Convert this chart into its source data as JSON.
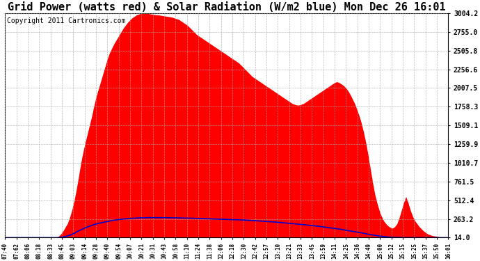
{
  "title": "Grid Power (watts red) & Solar Radiation (W/m2 blue) Mon Dec 26 16:01",
  "copyright": "Copyright 2011 Cartronics.com",
  "yticks": [
    14.0,
    263.2,
    512.4,
    761.5,
    1010.7,
    1259.9,
    1509.1,
    1758.3,
    2007.5,
    2256.6,
    2505.8,
    2755.0,
    3004.2
  ],
  "ymin": 14.0,
  "ymax": 3004.2,
  "xtick_labels": [
    "07:40",
    "07:62",
    "08:06",
    "08:18",
    "08:33",
    "08:45",
    "09:03",
    "09:14",
    "09:28",
    "09:40",
    "09:54",
    "10:07",
    "10:21",
    "10:31",
    "10:43",
    "10:58",
    "11:10",
    "11:24",
    "11:38",
    "12:06",
    "12:18",
    "12:30",
    "12:42",
    "12:57",
    "13:10",
    "13:21",
    "13:33",
    "13:45",
    "13:59",
    "14:11",
    "14:25",
    "14:36",
    "14:49",
    "15:00",
    "15:12",
    "15:15",
    "15:25",
    "15:37",
    "15:50",
    "16:01"
  ],
  "background_color": "#ffffff",
  "grid_color": "#aaaaaa",
  "fill_color": "#ff0000",
  "line_color": "#0000cc",
  "title_fontsize": 11,
  "copyright_fontsize": 7,
  "red_curve": [
    14,
    14,
    14,
    14,
    14,
    14,
    14,
    14,
    14,
    14,
    14,
    14,
    14,
    14,
    14,
    14,
    14,
    14,
    14,
    14,
    14,
    14,
    14,
    14,
    30,
    60,
    100,
    150,
    200,
    280,
    380,
    500,
    650,
    820,
    1000,
    1150,
    1280,
    1400,
    1520,
    1640,
    1780,
    1900,
    2000,
    2100,
    2200,
    2300,
    2400,
    2480,
    2540,
    2600,
    2650,
    2700,
    2750,
    2800,
    2840,
    2880,
    2910,
    2940,
    2960,
    2980,
    2990,
    3000,
    3004,
    3004,
    3000,
    2995,
    2990,
    2985,
    2980,
    2980,
    2975,
    2970,
    2965,
    2960,
    2955,
    2950,
    2940,
    2930,
    2920,
    2900,
    2880,
    2860,
    2840,
    2810,
    2780,
    2750,
    2720,
    2700,
    2680,
    2660,
    2640,
    2620,
    2600,
    2580,
    2560,
    2540,
    2520,
    2500,
    2480,
    2460,
    2440,
    2420,
    2400,
    2380,
    2360,
    2340,
    2310,
    2280,
    2250,
    2220,
    2190,
    2160,
    2140,
    2120,
    2100,
    2080,
    2060,
    2040,
    2020,
    2000,
    1980,
    1960,
    1940,
    1920,
    1900,
    1880,
    1860,
    1840,
    1820,
    1800,
    1790,
    1780,
    1780,
    1790,
    1800,
    1820,
    1840,
    1860,
    1880,
    1900,
    1920,
    1940,
    1960,
    1980,
    2000,
    2020,
    2040,
    2060,
    2080,
    2090,
    2080,
    2060,
    2040,
    2010,
    1970,
    1920,
    1860,
    1800,
    1720,
    1640,
    1540,
    1420,
    1280,
    1120,
    940,
    760,
    600,
    480,
    380,
    300,
    240,
    200,
    170,
    150,
    140,
    160,
    200,
    280,
    380,
    480,
    560,
    480,
    380,
    300,
    240,
    200,
    160,
    130,
    100,
    80,
    60,
    50,
    40,
    35,
    30,
    25,
    20,
    18,
    16,
    14
  ],
  "blue_curve": [
    14,
    14,
    14,
    14,
    14,
    14,
    14,
    14,
    14,
    14,
    14,
    14,
    14,
    14,
    14,
    14,
    14,
    14,
    14,
    14,
    14,
    14,
    14,
    14,
    16,
    18,
    22,
    28,
    36,
    46,
    58,
    72,
    88,
    104,
    118,
    132,
    145,
    157,
    168,
    178,
    188,
    196,
    204,
    212,
    218,
    225,
    231,
    237,
    242,
    247,
    251,
    255,
    259,
    262,
    265,
    268,
    270,
    272,
    274,
    276,
    277,
    278,
    279,
    280,
    280,
    281,
    281,
    281,
    281,
    281,
    281,
    280,
    280,
    279,
    279,
    278,
    278,
    277,
    277,
    276,
    276,
    275,
    274,
    274,
    273,
    272,
    271,
    270,
    269,
    268,
    267,
    266,
    265,
    264,
    263,
    262,
    261,
    260,
    259,
    258,
    257,
    256,
    255,
    254,
    253,
    252,
    250,
    249,
    247,
    246,
    244,
    243,
    241,
    239,
    237,
    235,
    233,
    231,
    229,
    227,
    225,
    222,
    220,
    218,
    215,
    212,
    210,
    207,
    204,
    201,
    198,
    195,
    193,
    190,
    187,
    184,
    181,
    178,
    175,
    172,
    168,
    165,
    161,
    157,
    153,
    149,
    145,
    141,
    137,
    133,
    128,
    124,
    119,
    114,
    109,
    104,
    99,
    94,
    89,
    84,
    78,
    72,
    66,
    60,
    55,
    50,
    45,
    40,
    36,
    32,
    28,
    25,
    22,
    20,
    18,
    17,
    16,
    15,
    14,
    14,
    14,
    14,
    14,
    14,
    14,
    14,
    14,
    14,
    14,
    14,
    14,
    14,
    14,
    14,
    14,
    14,
    14,
    14,
    14,
    14
  ]
}
